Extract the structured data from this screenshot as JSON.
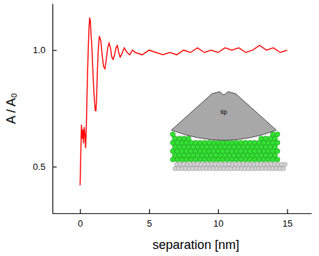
{
  "chart_data": {
    "type": "line",
    "x_label": "separation [nm]",
    "y_label": "A / A₀",
    "annotations": [
      "tip"
    ],
    "color": "#ff0000",
    "xlim": [
      -2,
      16.75
    ],
    "ylim": [
      0.3,
      1.2
    ],
    "xticks": [
      0,
      5,
      10,
      15
    ],
    "yticks": [
      0.5,
      {
        "value": 1,
        "label": "1.0"
      }
    ],
    "x": [
      0,
      0.05,
      0.1,
      0.15,
      0.2,
      0.25,
      0.3,
      0.35,
      0.4,
      0.45,
      0.5,
      0.55,
      0.6,
      0.65,
      0.7,
      0.75,
      0.8,
      0.85,
      0.9,
      0.95,
      1.0,
      1.05,
      1.1,
      1.15,
      1.2,
      1.25,
      1.3,
      1.35,
      1.4,
      1.5,
      1.6,
      1.7,
      1.8,
      1.9,
      2.0,
      2.1,
      2.2,
      2.3,
      2.4,
      2.5,
      2.6,
      2.7,
      2.8,
      2.9,
      3.0,
      3.2,
      3.4,
      3.6,
      3.8,
      4.0,
      4.5,
      5.0,
      5.5,
      6.0,
      6.5,
      7.0,
      7.5,
      8.0,
      8.5,
      9.0,
      9.5,
      10.0,
      10.5,
      11.0,
      11.5,
      12.0,
      12.5,
      13.0,
      13.5,
      14.0,
      14.5,
      15.0
    ],
    "values": [
      0.42,
      0.55,
      0.68,
      0.62,
      0.66,
      0.6,
      0.67,
      0.64,
      0.58,
      0.66,
      0.8,
      0.92,
      1.02,
      1.1,
      1.14,
      1.12,
      1.06,
      1.02,
      0.95,
      0.88,
      0.82,
      0.78,
      0.74,
      0.74,
      0.8,
      0.9,
      0.98,
      1.03,
      1.06,
      1.04,
      0.98,
      0.93,
      0.92,
      0.96,
      1.01,
      1.03,
      1.01,
      0.97,
      0.96,
      0.98,
      1.01,
      1.02,
      0.99,
      0.97,
      0.98,
      1.01,
      0.99,
      0.98,
      1.0,
      0.99,
      0.98,
      1.0,
      0.99,
      0.98,
      0.99,
      0.98,
      1.0,
      0.99,
      1.01,
      0.99,
      1.0,
      0.99,
      1.01,
      1.0,
      1.01,
      0.99,
      1.0,
      1.02,
      1.0,
      1.01,
      0.99,
      1.0
    ]
  }
}
